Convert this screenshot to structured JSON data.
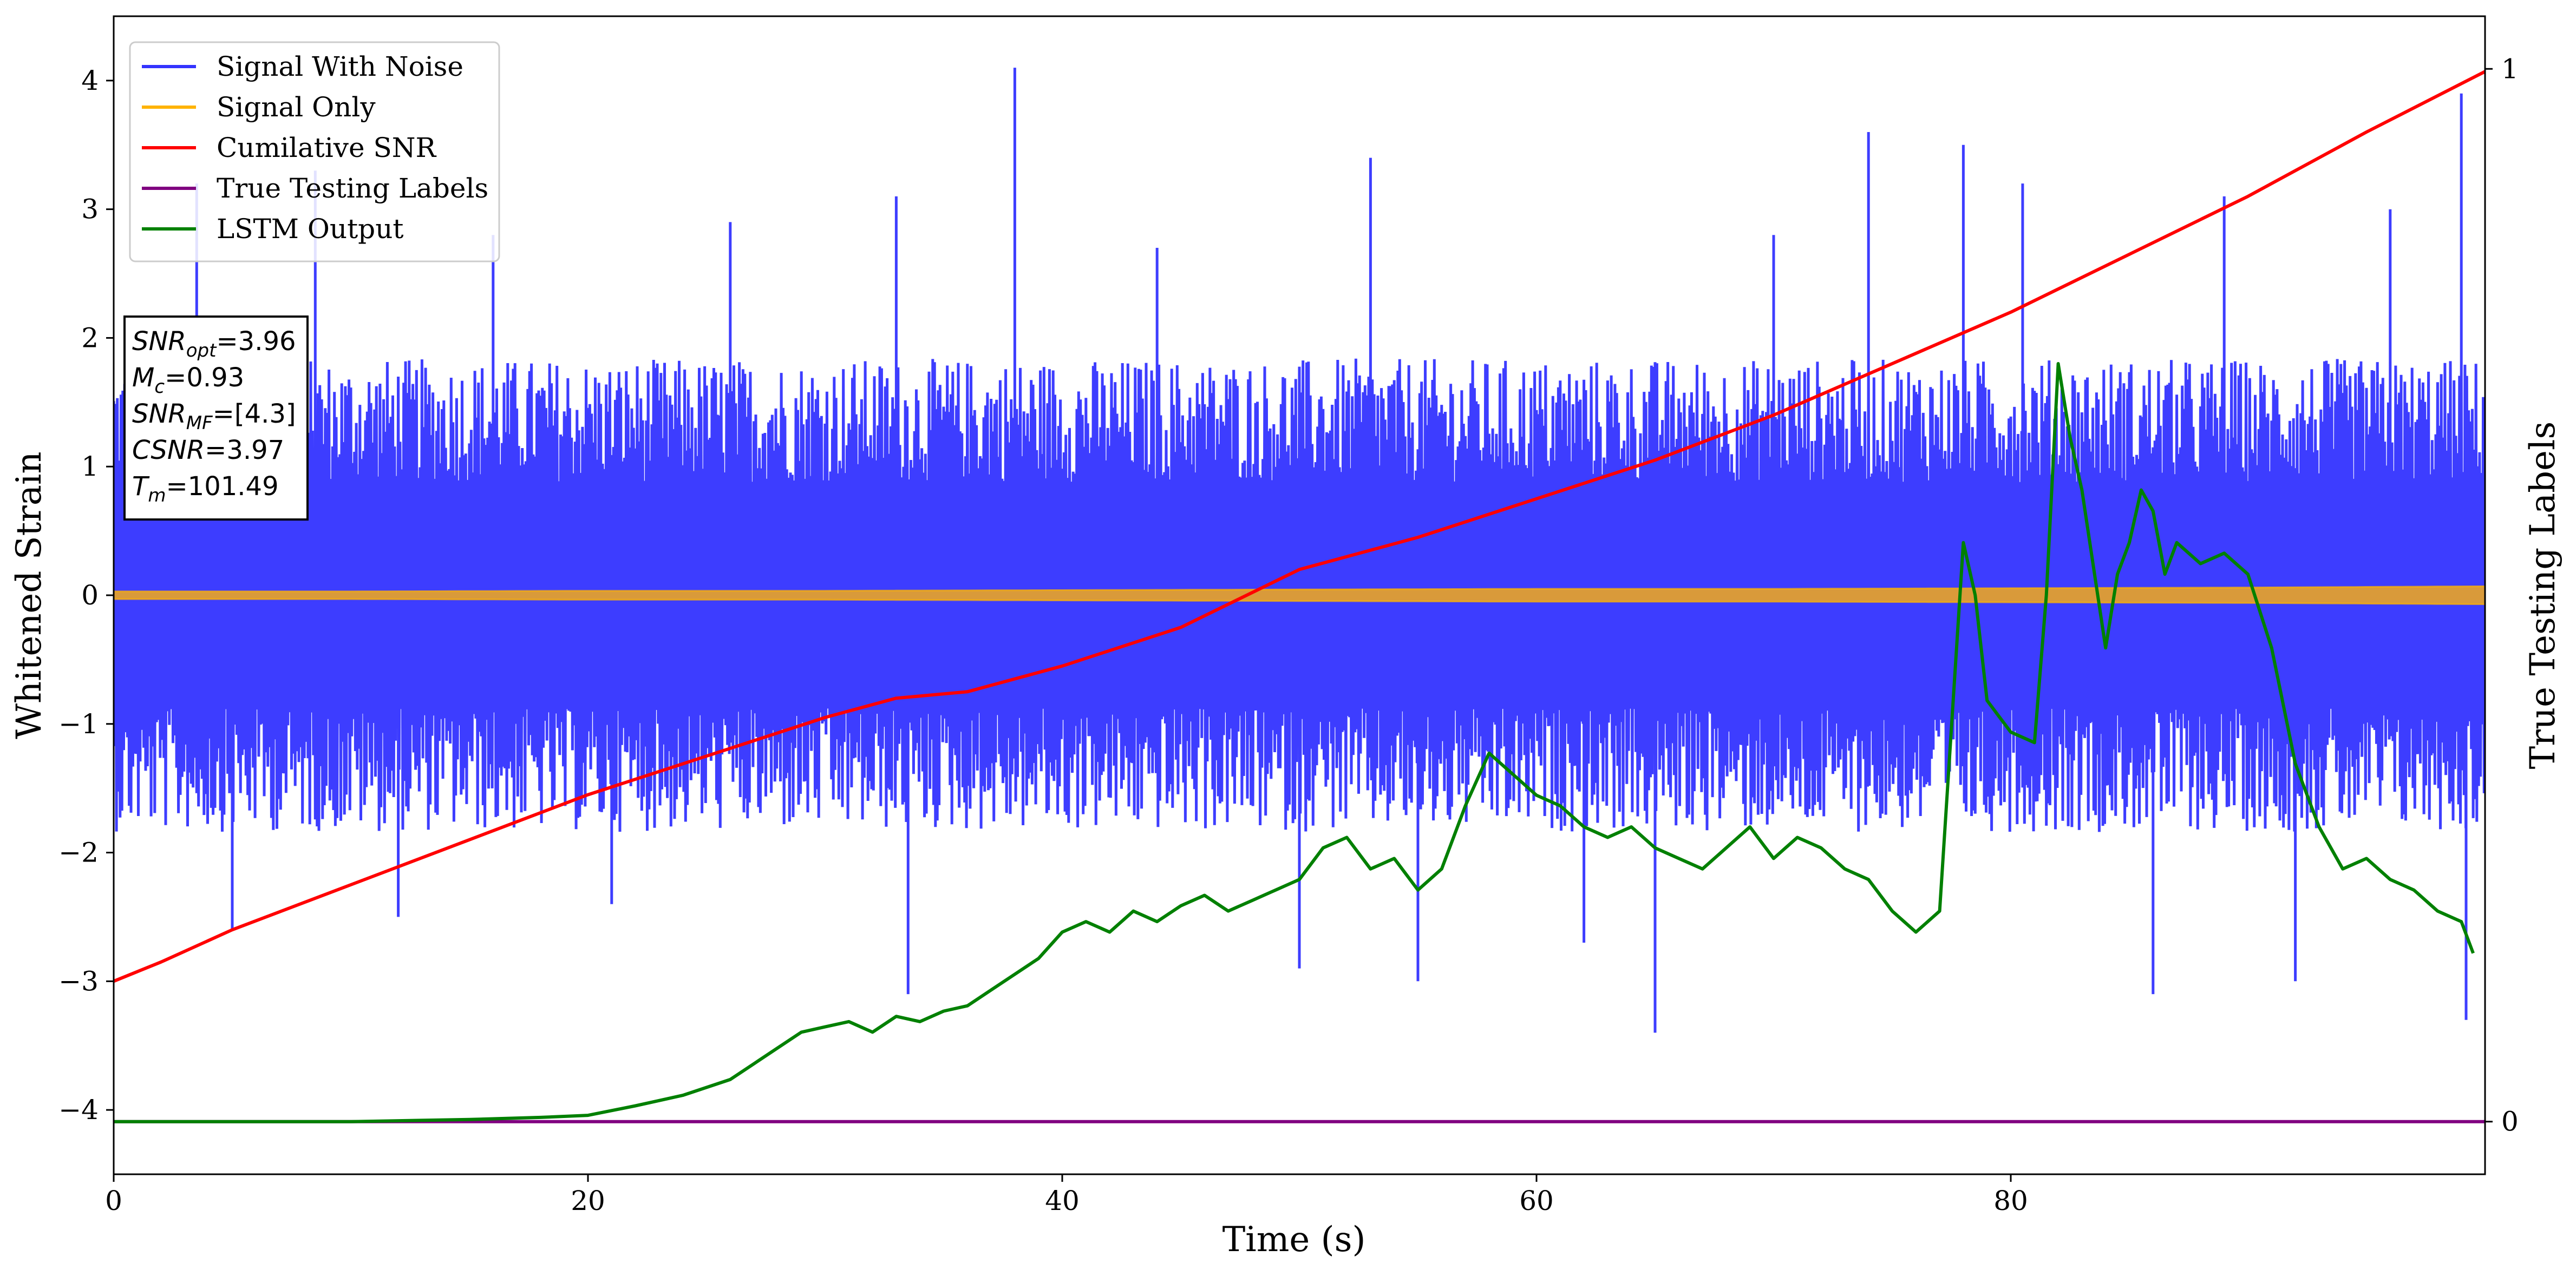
{
  "chart_data": {
    "type": "line",
    "xlabel": "Time (s)",
    "ylabel": "Whitened Strain",
    "y2label": "True Testing Labels",
    "xlim": [
      0,
      100
    ],
    "ylim": [
      -4.5,
      4.5
    ],
    "y2lim": [
      -0.05,
      1.05
    ],
    "x_ticks": [
      0,
      20,
      40,
      60,
      80
    ],
    "y_ticks": [
      -4,
      -3,
      -2,
      -1,
      0,
      1,
      2,
      3,
      4
    ],
    "y2_ticks": [
      0,
      1
    ],
    "legend_position": "upper-left",
    "grid": false,
    "annotation": {
      "lines": [
        {
          "base": "SNR",
          "sub": "opt",
          "value": "=3.96"
        },
        {
          "base": "M",
          "sub": "c",
          "value": "=0.93"
        },
        {
          "base": "SNR",
          "sub": "MF",
          "value": "=[4.3]"
        },
        {
          "base": "CSNR",
          "sub": "",
          "value": "=3.97"
        },
        {
          "base": "T",
          "sub": "m",
          "value": "=101.49"
        }
      ]
    },
    "series": [
      {
        "name": "Signal With Noise",
        "color": "#3333ff",
        "axis": "left",
        "style": "noise",
        "envelope": {
          "typical_abs": 1.6,
          "peaks": [
            [
              3.5,
              3.2
            ],
            [
              5.0,
              -2.6
            ],
            [
              8.5,
              3.3
            ],
            [
              12.0,
              -2.5
            ],
            [
              16.0,
              2.8
            ],
            [
              21.0,
              -2.4
            ],
            [
              26.0,
              2.9
            ],
            [
              33.0,
              3.1
            ],
            [
              33.5,
              -3.1
            ],
            [
              38.0,
              4.1
            ],
            [
              44.0,
              2.7
            ],
            [
              50.0,
              -2.9
            ],
            [
              53.0,
              3.4
            ],
            [
              55.0,
              -3.0
            ],
            [
              62.0,
              -2.7
            ],
            [
              65.0,
              -3.4
            ],
            [
              70.0,
              2.8
            ],
            [
              74.0,
              3.6
            ],
            [
              78.0,
              3.5
            ],
            [
              80.5,
              3.2
            ],
            [
              86.0,
              -3.1
            ],
            [
              89.0,
              3.1
            ],
            [
              92.0,
              -3.0
            ],
            [
              96.0,
              3.0
            ],
            [
              99.0,
              3.9
            ],
            [
              99.2,
              -3.3
            ]
          ]
        }
      },
      {
        "name": "Signal Only",
        "color": "#ffb300",
        "axis": "left",
        "style": "band",
        "x": [
          0,
          10,
          20,
          30,
          40,
          50,
          60,
          70,
          80,
          90,
          100
        ],
        "amplitude": [
          0.03,
          0.03,
          0.035,
          0.035,
          0.04,
          0.045,
          0.05,
          0.05,
          0.055,
          0.06,
          0.07
        ]
      },
      {
        "name": "Cumilative SNR",
        "color": "#ff0000",
        "axis": "left",
        "style": "line",
        "x": [
          0,
          2,
          5,
          10,
          15,
          20,
          25,
          30,
          33,
          36,
          40,
          45,
          50,
          55,
          60,
          65,
          70,
          75,
          80,
          85,
          90,
          95,
          100
        ],
        "y": [
          -3.0,
          -2.85,
          -2.6,
          -2.25,
          -1.9,
          -1.55,
          -1.25,
          -0.95,
          -0.8,
          -0.75,
          -0.55,
          -0.25,
          0.2,
          0.45,
          0.75,
          1.05,
          1.4,
          1.8,
          2.2,
          2.65,
          3.1,
          3.6,
          4.07
        ]
      },
      {
        "name": "True Testing Labels",
        "color": "#800080",
        "axis": "right",
        "style": "line",
        "x": [
          0,
          100
        ],
        "y": [
          0.0,
          0.0
        ]
      },
      {
        "name": "LSTM Output",
        "color": "#008000",
        "axis": "right",
        "style": "line",
        "x": [
          0,
          10,
          15,
          18,
          20,
          22,
          24,
          26,
          27,
          28,
          29,
          30,
          31,
          32,
          33,
          34,
          35,
          36,
          37,
          38,
          39,
          40,
          41,
          42,
          43,
          44,
          45,
          46,
          47,
          48,
          49,
          50,
          51,
          52,
          53,
          54,
          55,
          56,
          57,
          58,
          59,
          60,
          61,
          62,
          63,
          64,
          65,
          66,
          67,
          68,
          69,
          70,
          71,
          72,
          73,
          74,
          75,
          76,
          77,
          78,
          78.5,
          79,
          80,
          81,
          81.5,
          82,
          82.5,
          83,
          84,
          84.5,
          85,
          85.5,
          86,
          86.5,
          87,
          88,
          89,
          90,
          91,
          92,
          93,
          94,
          95,
          96,
          97,
          98,
          99,
          99.5
        ],
        "y": [
          0.0,
          0.0,
          0.002,
          0.004,
          0.006,
          0.015,
          0.025,
          0.04,
          0.055,
          0.07,
          0.085,
          0.09,
          0.095,
          0.085,
          0.1,
          0.095,
          0.105,
          0.11,
          0.125,
          0.14,
          0.155,
          0.18,
          0.19,
          0.18,
          0.2,
          0.19,
          0.205,
          0.215,
          0.2,
          0.21,
          0.22,
          0.23,
          0.26,
          0.27,
          0.24,
          0.25,
          0.22,
          0.24,
          0.3,
          0.35,
          0.33,
          0.31,
          0.3,
          0.28,
          0.27,
          0.28,
          0.26,
          0.25,
          0.24,
          0.26,
          0.28,
          0.25,
          0.27,
          0.26,
          0.24,
          0.23,
          0.2,
          0.18,
          0.2,
          0.55,
          0.5,
          0.4,
          0.37,
          0.36,
          0.5,
          0.72,
          0.65,
          0.6,
          0.45,
          0.52,
          0.55,
          0.6,
          0.58,
          0.52,
          0.55,
          0.53,
          0.54,
          0.52,
          0.45,
          0.34,
          0.28,
          0.24,
          0.25,
          0.23,
          0.22,
          0.2,
          0.19,
          0.16
        ]
      }
    ]
  }
}
